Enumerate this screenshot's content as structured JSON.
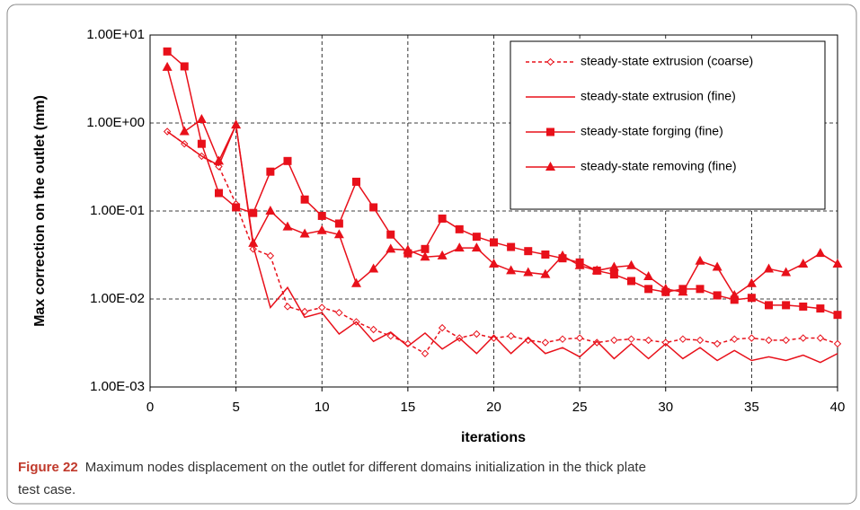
{
  "chart_data": {
    "type": "line",
    "ylabel": "Max correction on the outlet (mm)",
    "xlabel": "iterations",
    "caption": {
      "label": "Figure 22",
      "text": "Maximum nodes displacement on the outlet for different domains initialization in the thick plate",
      "text2": "test case."
    },
    "x": [
      1,
      2,
      3,
      4,
      5,
      6,
      7,
      8,
      9,
      10,
      11,
      12,
      13,
      14,
      15,
      16,
      17,
      18,
      19,
      20,
      21,
      22,
      23,
      24,
      25,
      26,
      27,
      28,
      29,
      30,
      31,
      32,
      33,
      34,
      35,
      36,
      37,
      38,
      39,
      40
    ],
    "xlim": [
      0,
      40
    ],
    "xticks": [
      0,
      5,
      10,
      15,
      20,
      25,
      30,
      35,
      40
    ],
    "ylim": [
      0.001,
      10
    ],
    "log_y": true,
    "yticks": [
      {
        "value": 10,
        "label": "1.00E+01"
      },
      {
        "value": 1,
        "label": "1.00E+00"
      },
      {
        "value": 0.1,
        "label": "1.00E-01"
      },
      {
        "value": 0.01,
        "label": "1.00E-02"
      },
      {
        "value": 0.001,
        "label": "1.00E-03"
      }
    ],
    "grid": true,
    "legend": "upper right",
    "series": [
      {
        "name": "steady-state extrusion (coarse)",
        "color": "#e8101a",
        "dash": true,
        "marker": "diamond",
        "values": [
          0.8,
          0.58,
          0.42,
          0.32,
          0.12,
          0.037,
          0.031,
          0.0082,
          0.0072,
          0.008,
          0.007,
          0.0055,
          0.0045,
          0.0038,
          0.0031,
          0.0024,
          0.0047,
          0.0036,
          0.004,
          0.0036,
          0.0038,
          0.0034,
          0.0032,
          0.0035,
          0.0036,
          0.0032,
          0.0034,
          0.0035,
          0.0034,
          0.0032,
          0.0035,
          0.0034,
          0.0031,
          0.0035,
          0.0036,
          0.0034,
          0.0034,
          0.0036,
          0.0036,
          0.0031
        ]
      },
      {
        "name": "steady-state extrusion (fine)",
        "color": "#e8101a",
        "dash": false,
        "marker": "none",
        "values": [
          0.8,
          0.58,
          0.42,
          0.33,
          0.95,
          0.04,
          0.008,
          0.0135,
          0.0062,
          0.007,
          0.004,
          0.0055,
          0.0033,
          0.0042,
          0.0029,
          0.0041,
          0.0027,
          0.0036,
          0.0024,
          0.0038,
          0.0024,
          0.0036,
          0.0024,
          0.0028,
          0.0022,
          0.0033,
          0.0021,
          0.0031,
          0.0021,
          0.0031,
          0.0021,
          0.0028,
          0.002,
          0.0026,
          0.002,
          0.0022,
          0.002,
          0.0023,
          0.0019,
          0.0024
        ]
      },
      {
        "name": "steady-state forging (fine)",
        "color": "#e8101a",
        "dash": false,
        "marker": "square",
        "values": [
          6.5,
          4.4,
          0.58,
          0.16,
          0.11,
          0.095,
          0.28,
          0.37,
          0.135,
          0.088,
          0.072,
          0.215,
          0.11,
          0.054,
          0.033,
          0.037,
          0.082,
          0.062,
          0.051,
          0.044,
          0.039,
          0.035,
          0.032,
          0.029,
          0.026,
          0.021,
          0.019,
          0.016,
          0.013,
          0.012,
          0.013,
          0.013,
          0.011,
          0.0098,
          0.0103,
          0.0085,
          0.0085,
          0.0082,
          0.0078,
          0.0066
        ]
      },
      {
        "name": "steady-state removing (fine)",
        "color": "#e8101a",
        "dash": false,
        "marker": "triangle",
        "values": [
          4.3,
          0.8,
          1.1,
          0.37,
          0.95,
          0.043,
          0.1,
          0.066,
          0.055,
          0.06,
          0.054,
          0.015,
          0.022,
          0.037,
          0.036,
          0.03,
          0.031,
          0.038,
          0.038,
          0.025,
          0.021,
          0.02,
          0.019,
          0.031,
          0.024,
          0.021,
          0.023,
          0.024,
          0.018,
          0.013,
          0.012,
          0.027,
          0.023,
          0.011,
          0.015,
          0.022,
          0.02,
          0.025,
          0.033,
          0.025
        ]
      }
    ]
  }
}
